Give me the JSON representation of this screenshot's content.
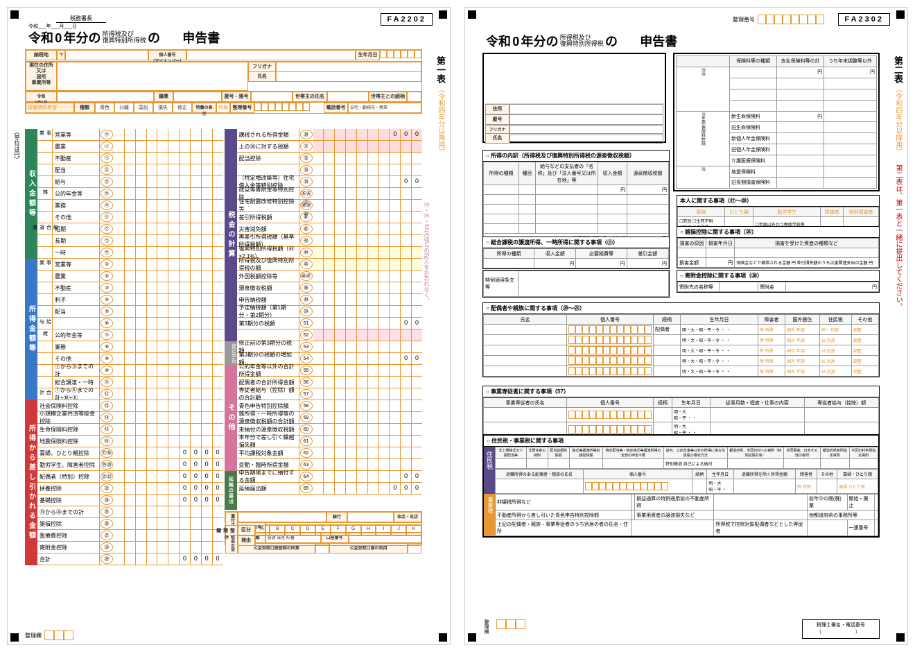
{
  "page1": {
    "form_code": "FA2202",
    "top_label": "税務署長",
    "date_prefix": "令和___年___月___日",
    "title_era": "令和",
    "title_year_suffix": "年分の",
    "title_tax": "所得税及び",
    "title_tax2": "復興特別所得税",
    "title_of": "の",
    "title_declare": "申告書",
    "side_label": "第一表",
    "side_sub": "（令和四年分以降用）",
    "taxplace": "納税地",
    "mynum": "個人番号",
    "mynum2": "（マイナンバー）",
    "birth": "生年月日",
    "address_label": "現在の住所",
    "address_label2": "又は",
    "address_label3": "居所",
    "address_label4": "事業所等",
    "furigana": "フリガナ",
    "name": "氏名",
    "occupation": "職業",
    "building": "屋号・雅号",
    "household": "世帯主の氏名",
    "relation": "世帯主との続柄",
    "transfer": "振替継続希望",
    "type": "種類",
    "seiri": "整理番号",
    "phone": "電話番号",
    "unit": "（単位は円）",
    "income_section": {
      "header": "収入金額等",
      "rows": [
        {
          "cat": "事業",
          "label": "営業等",
          "num": "㋐"
        },
        {
          "cat": "",
          "label": "農業",
          "num": "㋑"
        },
        {
          "cat": "",
          "label": "不動産",
          "num": "㋒"
        },
        {
          "cat": "",
          "label": "配当",
          "num": "㋓"
        },
        {
          "cat": "",
          "label": "給与",
          "num": "㋔"
        },
        {
          "cat": "雑",
          "label": "公的年金等",
          "num": "㋕"
        },
        {
          "cat": "",
          "label": "業務",
          "num": "㋖"
        },
        {
          "cat": "",
          "label": "その他",
          "num": "㋗"
        },
        {
          "cat": "総合譲渡",
          "label": "短期",
          "num": "㋘"
        },
        {
          "cat": "",
          "label": "長期",
          "num": "㋙"
        },
        {
          "cat": "",
          "label": "一時",
          "num": "㋚"
        }
      ]
    },
    "shotoku_section": {
      "header": "所得金額等",
      "rows": [
        {
          "cat": "事業",
          "label": "営業等",
          "num": "①"
        },
        {
          "cat": "",
          "label": "農業",
          "num": "②"
        },
        {
          "cat": "",
          "label": "不動産",
          "num": "③"
        },
        {
          "cat": "",
          "label": "利子",
          "num": "④"
        },
        {
          "cat": "",
          "label": "配当",
          "num": "⑤"
        },
        {
          "cat": "給与",
          "label": "",
          "num": "⑥"
        },
        {
          "cat": "雑",
          "label": "公的年金等",
          "num": "⑦"
        },
        {
          "cat": "",
          "label": "業務",
          "num": "⑧"
        },
        {
          "cat": "",
          "label": "その他",
          "num": "⑨"
        },
        {
          "cat": "",
          "label": "⑦から⑨までの計",
          "num": "⑩"
        },
        {
          "cat": "",
          "label": "総合譲渡・一時",
          "num": "⑪"
        },
        {
          "cat": "合計",
          "label": "①から⑥までの計+⑩+⑪",
          "num": "⑫"
        }
      ]
    },
    "deduction_section": {
      "header": "所得から差し引かれる金額",
      "rows": [
        {
          "label": "社会保険料控除",
          "num": "⑬"
        },
        {
          "label": "小規模企業共済等掛金控除",
          "num": "⑭"
        },
        {
          "label": "生命保険料控除",
          "num": "⑮"
        },
        {
          "label": "地震保険料控除",
          "num": "⑯"
        },
        {
          "label": "寡婦、ひとり親控除",
          "num": "⑰⑱",
          "value": "0000"
        },
        {
          "label": "勤労学生、障害者控除",
          "num": "⑲⑳",
          "value": "0000"
        },
        {
          "label": "配偶者（特別）控除",
          "num": "㉑㉒",
          "value": "0000"
        },
        {
          "label": "扶養控除",
          "num": "㉓",
          "value": "0000"
        },
        {
          "label": "基礎控除",
          "num": "㉔",
          "value": "0000"
        },
        {
          "label": "⑬から㉔までの計",
          "num": "㉕"
        },
        {
          "label": "雑損控除",
          "num": "㉖"
        },
        {
          "label": "医療費控除",
          "num": "㉗"
        },
        {
          "label": "寄附金控除",
          "num": "㉘"
        },
        {
          "label": "合計",
          "num": "㉙",
          "value": "0000"
        }
      ]
    },
    "tax_section": {
      "header": "税金の計算",
      "rows": [
        {
          "label": "課税される所得金額",
          "num": "㉚",
          "value": "000",
          "hl": "red"
        },
        {
          "label": "上の㉚に対する税額",
          "num": "㉛",
          "hl": "red"
        },
        {
          "label": "配当控除",
          "num": "㉜"
        },
        {
          "label": "",
          "num": "㉝"
        },
        {
          "label": "（特定増改築等）住宅借入金等特別控除",
          "num": "㉞",
          "value": "00"
        },
        {
          "label": "政党等寄附金等特別控除",
          "num": "㉟㊱㊲"
        },
        {
          "label": "住宅耐震改修特別控除等",
          "num": "㊳㊴㊵"
        },
        {
          "label": "差引所得税額",
          "num": "㊶"
        },
        {
          "label": "災害減免額",
          "num": "㊷"
        },
        {
          "label": "再差引所得税額（基準所得税額）",
          "num": "㊸"
        },
        {
          "label": "復興特別所得税額（㊸×2.1%）",
          "num": "㊹",
          "hl": "yellow"
        },
        {
          "label": "所得税及び復興特別所得税の額",
          "num": "㊺",
          "hl": "yellow"
        },
        {
          "label": "外国税額控除等",
          "num": "㊻㊼"
        },
        {
          "label": "源泉徴収税額",
          "num": "㊽"
        },
        {
          "label": "申告納税額",
          "num": "㊾"
        },
        {
          "label": "予定納税額（第1期分・第2期分）",
          "num": "㊿"
        },
        {
          "label": "第3期分の税額",
          "num": "51",
          "value": "00",
          "sub": "納める税金"
        },
        {
          "label": "",
          "num": "52",
          "sub": "還付される税金",
          "hl": "pink"
        }
      ]
    },
    "correction": {
      "label": "修正申告",
      "rows": [
        {
          "label": "修正前の第3期分の税額",
          "num": "53"
        },
        {
          "label": "第3期分の税額の増加額",
          "num": "54",
          "value": "00"
        }
      ]
    },
    "other_section": {
      "header": "その他",
      "rows": [
        {
          "label": "公的年金等以外の合計所得金額",
          "num": "55"
        },
        {
          "label": "配偶者の合計所得金額",
          "num": "56"
        },
        {
          "label": "専従者給与（控除）額の合計額",
          "num": "57"
        },
        {
          "label": "青色申告特別控除額",
          "num": "58"
        },
        {
          "label": "雑所得・一時所得等の源泉徴収税額の合計額",
          "num": "59"
        },
        {
          "label": "未納付の源泉徴収税額",
          "num": "60"
        },
        {
          "label": "本年分で差し引く繰越損失額",
          "num": "61"
        },
        {
          "label": "平均課税対象金額",
          "num": "62"
        },
        {
          "label": "変動・臨時所得金額",
          "num": "63"
        }
      ]
    },
    "deferral_section": {
      "header": "延納の届出",
      "rows": [
        {
          "label": "申告期限までに納付する金額",
          "num": "64",
          "value": "00"
        },
        {
          "label": "延納届出額",
          "num": "65",
          "value": "000"
        }
      ]
    },
    "refund": {
      "label": "還付される税金の受取場所",
      "bank": "銀行",
      "branch": "本店・支店",
      "postal": "郵便局名等",
      "account_type": "預金種類",
      "account": "口座番号",
      "account_record": "公金受取口座登録の同意",
      "account_use": "公金受取口座の利用"
    },
    "seiri_label": "整理欄",
    "distinction": "区分",
    "reason": "理由",
    "alpha": [
      "A",
      "B",
      "C",
      "D",
      "E",
      "F",
      "G",
      "H",
      "I",
      "J",
      "K"
    ],
    "pink_note": "㊹・㊺・51又は52の記入をお忘れなく。"
  },
  "page2": {
    "form_code": "FA2302",
    "seiri": "整理番号",
    "title_era": "令和",
    "title_year_suffix": "年分の",
    "title_tax": "所得税及び",
    "title_tax2": "復興特別所得税",
    "title_of": "の",
    "title_declare": "申告書",
    "side_label": "第二表",
    "side_sub": "（令和四年分以降用）",
    "side_note": "第二表は、第一表と一緒に提出してください。",
    "address": "住所",
    "building": "屋号",
    "furigana": "フリガナ",
    "name": "氏名",
    "insurance": {
      "header": [
        "保険料等の種類",
        "支払保険料等の計",
        "うち年末調整等以外"
      ],
      "cat1": "社会保険料控除",
      "cat2": "小規模企業共済等掛金控除",
      "cat3": "生命保険料控除",
      "rows": [
        "新生命保険料",
        "旧生命保険料",
        "新個人年金保険料",
        "旧個人年金保険料",
        "介護医療保険料"
      ],
      "cat4": "地震保険料控除",
      "rows2": [
        "地震保険料",
        "旧長期損害保険料"
      ]
    },
    "person_info": {
      "header": "本人に関する事項（⑰～⑳）",
      "widow": "寡婦",
      "single": "ひとり親",
      "student": "勤労学生",
      "disabled": "障害者",
      "special": "特別障害者",
      "death": "死別",
      "life": "生死不明",
      "divorce": "離婚",
      "unreturned": "未帰還",
      "overseas": "年調以外かつ専修学校等"
    },
    "breakdown": {
      "header": "○ 所得の内訳（所得税及び復興特別所得税の源泉徴収税額）",
      "cols": [
        "所得の種類",
        "種目",
        "給与などの支払者の「名称」及び「法人番号又は所在地」等",
        "収入金額",
        "源泉徴収税額"
      ],
      "total": "㊽源泉徴収税額の合計額"
    },
    "transfer": {
      "header": "○ 総合課税の譲渡所得、一時所得に関する事項（⑪）",
      "cols": [
        "所得の種類",
        "収入金額",
        "必要経費等",
        "差引金額"
      ]
    },
    "special": {
      "header": "特例適用条文等"
    },
    "misc_loss": {
      "header": "○ 雑損控除に関する事項（㉖）",
      "cols": [
        "損害の原因",
        "損害年月日",
        "損害を受けた資産の種類など"
      ],
      "amount": "損害金額",
      "insurance_comp": "保険金などで補填される金額",
      "diff": "差引損失額のうち災害関連支出の金額"
    },
    "donation": {
      "header": "○ 寄附金控除に関する事項（㉘）",
      "recipient": "寄附先の名称等",
      "amount": "寄附金"
    },
    "spouse": {
      "header": "○ 配偶者や親族に関する事項（⑳～㉓）",
      "cols": [
        "氏名",
        "個人番号",
        "続柄",
        "生年月日",
        "障害者",
        "国外居住",
        "住民税",
        "その他"
      ],
      "relation": "配偶者",
      "eras": "明・大・昭・平・令"
    },
    "business_family": {
      "header": "○ 事業専従者に関する事項（57）",
      "cols": [
        "事業専従者の氏名",
        "個人番号",
        "続柄",
        "生年月日",
        "従事月数・程度・仕事の内容",
        "専従者給与（控除）額"
      ]
    },
    "residence_tax": {
      "header": "○ 住民税・事業税に関する事項",
      "label1": "住民税",
      "label2": "事業税",
      "cols1": [
        "非上場株式の少額配当等",
        "非居住者の特例",
        "配当割額控除額",
        "株式等譲渡所得割額控除額",
        "特定配当等・特定株式等譲渡所得の全部の申告不要",
        "給与、公的年金等以外の所得に係る住民税の徴収方法",
        "都道府県、市区町村への寄附（特例控除対象）",
        "共同募金、日赤その他の寄附",
        "都道府県条例指定寄附",
        "市区町村条例指定寄附"
      ],
      "collection1": "特別徴収",
      "collection2": "自己による納付",
      "row2": [
        "退職所得のある配偶者・親族の氏名",
        "個人番号",
        "続柄",
        "生年月日",
        "退職所得を除く所得金額",
        "障害者",
        "その他",
        "寡婦・ひとり親"
      ],
      "row3": [
        "非課税所得など",
        "損益通算の特例適用前の不動産所得",
        "前年中の開(廃)業",
        "開始・廃止"
      ],
      "row4": [
        "不動産所得から差し引いた青色申告特別控除額",
        "事業用資産の譲渡損失など",
        "他都道府県の事務所等"
      ],
      "row5": [
        "上記の配偶者・親族・事業専従者のうち別居の者の氏名・住所",
        "所得税で控除対象配偶者などとした専従者",
        "一連番号"
      ]
    },
    "seiri_label": "整理欄",
    "signature": "税理士署名・電話番号"
  }
}
